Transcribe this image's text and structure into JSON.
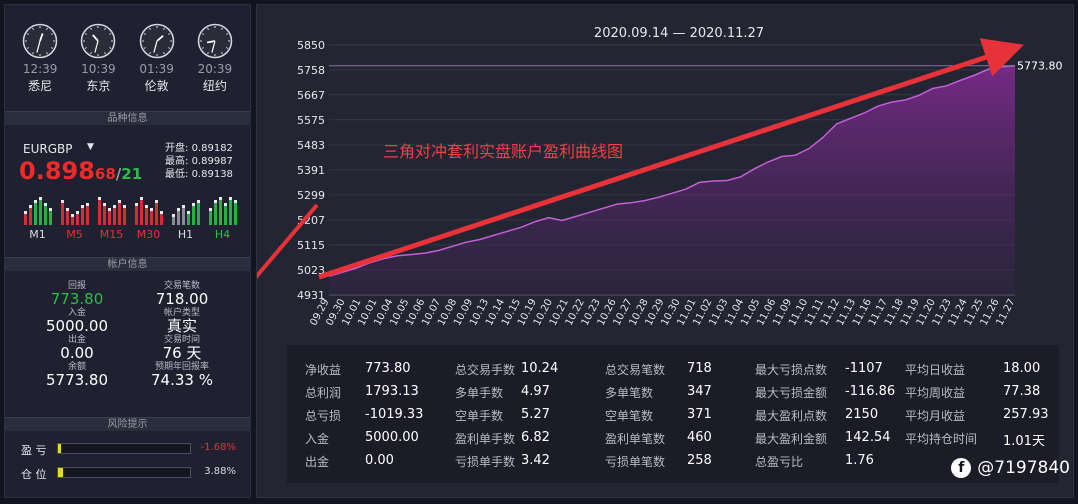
{
  "clocks": [
    {
      "time": "12:39",
      "city": "悉尼",
      "h": 0.65,
      "m": 6.5
    },
    {
      "time": "10:39",
      "city": "东京",
      "h": 10.65,
      "m": 6.5
    },
    {
      "time": "01:39",
      "city": "伦敦",
      "h": 1.65,
      "m": 6.5
    },
    {
      "time": "20:39",
      "city": "纽约",
      "h": 8.65,
      "m": 6.5
    }
  ],
  "sections": {
    "instrument": "品种信息",
    "account": "帐户信息",
    "risk": "风险提示"
  },
  "instrument": {
    "symbol": "EURGBP",
    "dropdown": "▼",
    "price_main": "0.898",
    "price_mid": "68",
    "price_sep": "/",
    "price_end": "21",
    "open_label": "开盘:",
    "open": "0.89182",
    "high_label": "最高:",
    "high": "0.89987",
    "low_label": "最低:",
    "low": "0.89138",
    "timeframes": [
      {
        "label": "M1",
        "color": "#d8d8de"
      },
      {
        "label": "M5",
        "color": "#e0323a"
      },
      {
        "label": "M15",
        "color": "#e0323a"
      },
      {
        "label": "M30",
        "color": "#e0323a"
      },
      {
        "label": "H1",
        "color": "#d8d8de"
      },
      {
        "label": "H4",
        "color": "#2bbd48"
      }
    ]
  },
  "account": {
    "return_label": "回报",
    "return": "773.80",
    "trades_label": "交易笔数",
    "trades": "718.00",
    "deposit_label": "入金",
    "deposit": "5000.00",
    "type_label": "帐户类型",
    "type": "真实",
    "withdraw_label": "出金",
    "withdraw": "0.00",
    "days_label": "交易时间",
    "days": "76 天",
    "balance_label": "余额",
    "balance": "5773.80",
    "annual_label": "预期年回报率",
    "annual": "74.33 %"
  },
  "risk": {
    "pl_label": "盈  亏",
    "pl_value": "-1.68%",
    "pl_fill": 0.02,
    "pl_color": "#e0323a",
    "pos_label": "仓  位",
    "pos_value": "3.88%",
    "pos_fill": 0.04,
    "pos_color": "#d8d8de"
  },
  "chart_data": {
    "type": "area",
    "title": "2020.09.14 — 2020.11.27",
    "annotation": "三角对冲套利实盘账户盈利曲线图",
    "last_value_label": "5773.80",
    "last_value": 5773.8,
    "ylim": [
      4931,
      5850
    ],
    "yticks": [
      "5850",
      "5758",
      "5667",
      "5575",
      "5483",
      "5391",
      "5299",
      "5207",
      "5115",
      "5023",
      "4931"
    ],
    "xticks": [
      "09.29",
      "09.30",
      "10.01",
      "10.01",
      "10.04",
      "10.05",
      "10.06",
      "10.07",
      "10.08",
      "10.09",
      "10.13",
      "10.14",
      "10.15",
      "10.19",
      "10.20",
      "10.21",
      "10.22",
      "10.23",
      "10.26",
      "10.27",
      "10.28",
      "10.29",
      "10.30",
      "11.01",
      "11.02",
      "11.03",
      "11.04",
      "11.05",
      "11.06",
      "11.09",
      "11.10",
      "11.11",
      "11.12",
      "11.13",
      "11.16",
      "11.17",
      "11.18",
      "11.19",
      "11.20",
      "11.23",
      "11.24",
      "11.25",
      "11.26",
      "11.27"
    ],
    "values": [
      5000,
      5015,
      5030,
      5050,
      5065,
      5075,
      5080,
      5085,
      5095,
      5110,
      5125,
      5135,
      5150,
      5165,
      5180,
      5200,
      5215,
      5205,
      5220,
      5235,
      5250,
      5265,
      5270,
      5278,
      5290,
      5305,
      5320,
      5345,
      5350,
      5352,
      5365,
      5395,
      5420,
      5440,
      5445,
      5470,
      5510,
      5560,
      5580,
      5600,
      5625,
      5640,
      5648,
      5665,
      5690,
      5700,
      5720,
      5738,
      5760,
      5770,
      5773.8
    ]
  },
  "stats": [
    [
      {
        "k": "净收益",
        "v": "773.80"
      },
      {
        "k": "总利润",
        "v": "1793.13"
      },
      {
        "k": "总亏损",
        "v": "-1019.33"
      },
      {
        "k": "入金",
        "v": "5000.00"
      },
      {
        "k": "出金",
        "v": "0.00"
      }
    ],
    [
      {
        "k": "总交易手数",
        "v": "10.24"
      },
      {
        "k": "多单手数",
        "v": "4.97"
      },
      {
        "k": "空单手数",
        "v": "5.27"
      },
      {
        "k": "盈利单手数",
        "v": "6.82"
      },
      {
        "k": "亏损单手数",
        "v": "3.42"
      }
    ],
    [
      {
        "k": "总交易笔数",
        "v": "718"
      },
      {
        "k": "多单笔数",
        "v": "347"
      },
      {
        "k": "空单笔数",
        "v": "371"
      },
      {
        "k": "盈利单笔数",
        "v": "460"
      },
      {
        "k": "亏损单笔数",
        "v": "258"
      }
    ],
    [
      {
        "k": "最大亏损点数",
        "v": "-1107"
      },
      {
        "k": "最大亏损金额",
        "v": "-116.86"
      },
      {
        "k": "最大盈利点数",
        "v": "2150"
      },
      {
        "k": "最大盈利金额",
        "v": "142.54"
      },
      {
        "k": "总盈亏比",
        "v": "1.76"
      }
    ],
    [
      {
        "k": "平均日收益",
        "v": "18.00"
      },
      {
        "k": "平均周收益",
        "v": "77.38"
      },
      {
        "k": "平均月收益",
        "v": "257.93"
      },
      {
        "k": "平均持仓时间",
        "v": "1.01天"
      }
    ]
  ],
  "watermark": "@7197840"
}
